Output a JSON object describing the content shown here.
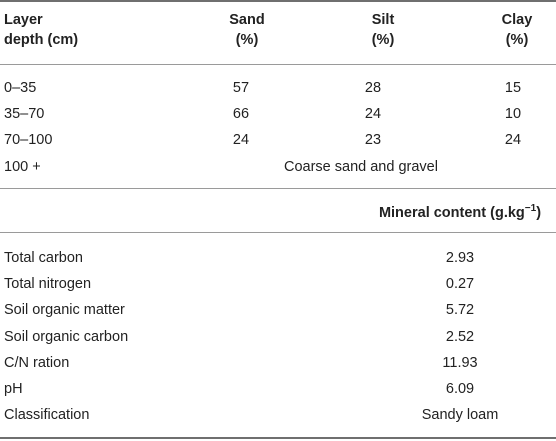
{
  "soil_table": {
    "headers": {
      "layer_line1": "Layer",
      "layer_line2": "depth (cm)",
      "sand_line1": "Sand",
      "sand_line2": "(%)",
      "silt_line1": "Silt",
      "silt_line2": "(%)",
      "clay_line1": "Clay",
      "clay_line2": "(%)"
    },
    "rows": [
      {
        "depth": "0–35",
        "sand": "57",
        "silt": "28",
        "clay": "15"
      },
      {
        "depth": "35–70",
        "sand": "66",
        "silt": "24",
        "clay": "10"
      },
      {
        "depth": "70–100",
        "sand": "24",
        "silt": "23",
        "clay": "24"
      }
    ],
    "last_row": {
      "depth": "100 +",
      "note": "Coarse sand and gravel"
    }
  },
  "mineral_table": {
    "header_text": "Mineral content (g.kg",
    "header_sup": "−1",
    "header_close": ")",
    "rows": [
      {
        "label": "Total carbon",
        "value": "2.93"
      },
      {
        "label": "Total nitrogen",
        "value": "0.27"
      },
      {
        "label": "Soil organic matter",
        "value": "5.72"
      },
      {
        "label": "Soil organic carbon",
        "value": "2.52"
      },
      {
        "label": "C/N ration",
        "value": "11.93"
      },
      {
        "label": "pH",
        "value": "6.09"
      },
      {
        "label": "Classification",
        "value": "Sandy loam"
      }
    ]
  }
}
